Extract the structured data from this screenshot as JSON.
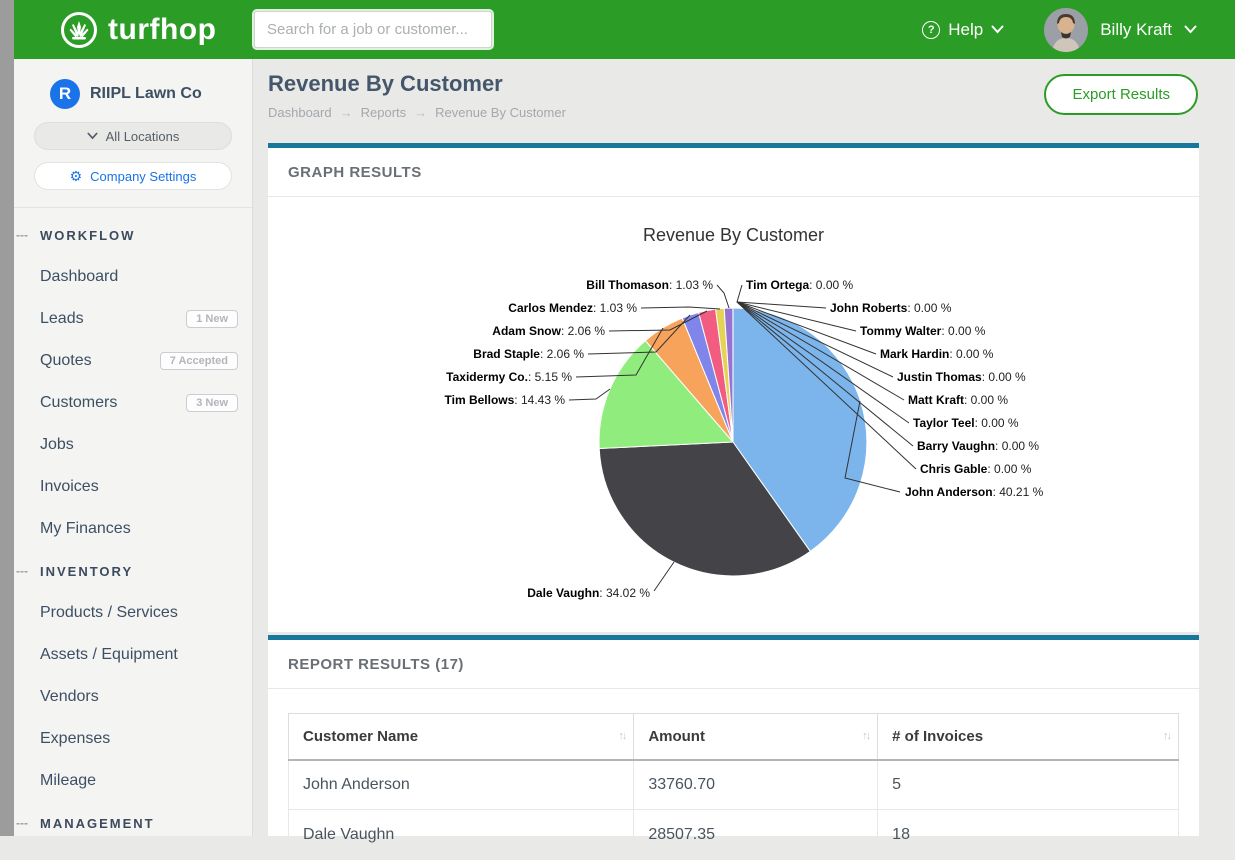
{
  "topbar": {
    "brand": "turfhop",
    "search_placeholder": "Search for a job or customer...",
    "help_label": "Help",
    "user_name": "Billy Kraft"
  },
  "sidebar": {
    "company_initial": "R",
    "company_name": "RIIPL Lawn Co",
    "locations_label": "All Locations",
    "settings_label": "Company Settings",
    "sections": [
      {
        "label": "WORKFLOW",
        "items": [
          {
            "label": "Dashboard"
          },
          {
            "label": "Leads",
            "badge": "1 New"
          },
          {
            "label": "Quotes",
            "badge": "7 Accepted"
          },
          {
            "label": "Customers",
            "badge": "3 New"
          },
          {
            "label": "Jobs"
          },
          {
            "label": "Invoices"
          },
          {
            "label": "My Finances"
          }
        ]
      },
      {
        "label": "INVENTORY",
        "items": [
          {
            "label": "Products / Services"
          },
          {
            "label": "Assets / Equipment"
          },
          {
            "label": "Vendors"
          },
          {
            "label": "Expenses"
          },
          {
            "label": "Mileage"
          }
        ]
      },
      {
        "label": "MANAGEMENT",
        "items": []
      }
    ]
  },
  "page": {
    "title": "Revenue By Customer",
    "breadcrumb": [
      "Dashboard",
      "Reports",
      "Revenue By Customer"
    ],
    "export_label": "Export Results"
  },
  "graph_panel": {
    "heading": "GRAPH RESULTS"
  },
  "report_panel": {
    "heading": "REPORT RESULTS (17)"
  },
  "chart_data": {
    "type": "pie",
    "title": "Revenue By Customer",
    "value_unit": "%",
    "legend_position": "none",
    "slices": [
      {
        "name": "John Anderson",
        "pct": 40.21,
        "color": "#7cb5ec"
      },
      {
        "name": "Dale Vaughn",
        "pct": 34.02,
        "color": "#434348"
      },
      {
        "name": "Tim Bellows",
        "pct": 14.43,
        "color": "#90ed7d"
      },
      {
        "name": "Taxidermy Co.",
        "pct": 5.15,
        "color": "#f7a35c"
      },
      {
        "name": "Brad Staple",
        "pct": 2.06,
        "color": "#8085e9"
      },
      {
        "name": "Adam Snow",
        "pct": 2.06,
        "color": "#f15c80"
      },
      {
        "name": "Carlos Mendez",
        "pct": 1.03,
        "color": "#e4d354"
      },
      {
        "name": "Bill Thomason",
        "pct": 1.03,
        "color": "#9673d3"
      },
      {
        "name": "Tim Ortega",
        "pct": 0.0,
        "color": "#f45b5b"
      },
      {
        "name": "John Roberts",
        "pct": 0.0,
        "color": "#91e8e1"
      },
      {
        "name": "Tommy Walter",
        "pct": 0.0,
        "color": "#7cb5ec"
      },
      {
        "name": "Mark Hardin",
        "pct": 0.0,
        "color": "#434348"
      },
      {
        "name": "Justin Thomas",
        "pct": 0.0,
        "color": "#90ed7d"
      },
      {
        "name": "Matt Kraft",
        "pct": 0.0,
        "color": "#f7a35c"
      },
      {
        "name": "Taylor Teel",
        "pct": 0.0,
        "color": "#8085e9"
      },
      {
        "name": "Barry Vaughn",
        "pct": 0.0,
        "color": "#f15c80"
      },
      {
        "name": "Chris Gable",
        "pct": 0.0,
        "color": "#e4d354"
      }
    ]
  },
  "table": {
    "columns": [
      "Customer Name",
      "Amount",
      "# of Invoices"
    ],
    "rows": [
      [
        "John Anderson",
        "33760.70",
        "5"
      ],
      [
        "Dale Vaughn",
        "28507.35",
        "18"
      ]
    ]
  }
}
